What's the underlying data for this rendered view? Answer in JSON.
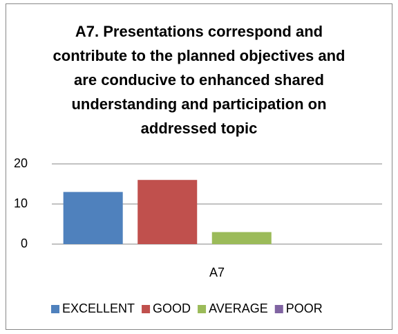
{
  "chart_data": {
    "type": "bar",
    "title": "A7. Presentations correspond and contribute to the planned objectives and are conducive to enhanced shared understanding and participation on addressed topic",
    "categories": [
      "A7"
    ],
    "series": [
      {
        "name": "EXCELLENT",
        "color": "#4f81bd",
        "values": [
          13
        ]
      },
      {
        "name": "GOOD",
        "color": "#c0504d",
        "values": [
          16
        ]
      },
      {
        "name": "AVERAGE",
        "color": "#9bbb59",
        "values": [
          3
        ]
      },
      {
        "name": "POOR",
        "color": "#8064a2",
        "values": [
          0
        ]
      }
    ],
    "ylim": [
      0,
      20
    ],
    "yticks": [
      0,
      10,
      20
    ],
    "grid": true,
    "legend": "bottom"
  }
}
